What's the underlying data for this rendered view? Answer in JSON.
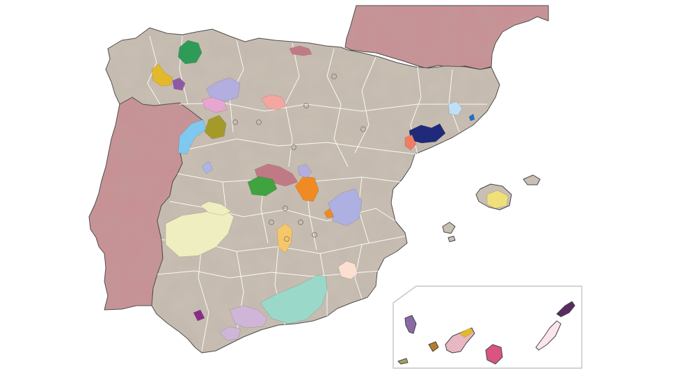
{
  "map": {
    "colors": {
      "sea": "#ffffff",
      "spain_land": "#c9bfb3",
      "foreign_land": "#c98f94",
      "province_border": "#ffffff",
      "coastline": "#444444",
      "inset_frame": "#bbbbbb"
    },
    "has_relief_shading": true,
    "has_canary_islands_inset": true,
    "wine_regions": [
      {
        "color": "#2e9b57"
      },
      {
        "color": "#e2b92a"
      },
      {
        "color": "#8e5aa6"
      },
      {
        "color": "#b3aee0"
      },
      {
        "color": "#e7a6d0"
      },
      {
        "color": "#f3a7a0"
      },
      {
        "color": "#a39a2a"
      },
      {
        "color": "#7fc8ef"
      },
      {
        "color": "#aab6e8"
      },
      {
        "color": "#c07a86"
      },
      {
        "color": "#3fa33f"
      },
      {
        "color": "#f08a22"
      },
      {
        "color": "#aeb0e2"
      },
      {
        "color": "#f6c66a"
      },
      {
        "color": "#fbe0d2"
      },
      {
        "color": "#eeeec0"
      },
      {
        "color": "#9ad9c9"
      },
      {
        "color": "#cfb6d8"
      },
      {
        "color": "#8a2c8a"
      },
      {
        "color": "#1f2a7a"
      },
      {
        "color": "#ee7d63"
      },
      {
        "color": "#bfe0f5"
      },
      {
        "color": "#1b6fd1"
      },
      {
        "color": "#efe07a"
      },
      {
        "color": "#5c2a63"
      },
      {
        "color": "#fbe5ea"
      },
      {
        "color": "#d95580"
      },
      {
        "color": "#8a6aa6"
      },
      {
        "color": "#b77c2a"
      },
      {
        "color": "#a5a35a"
      },
      {
        "color": "#e8b7c4"
      }
    ]
  }
}
